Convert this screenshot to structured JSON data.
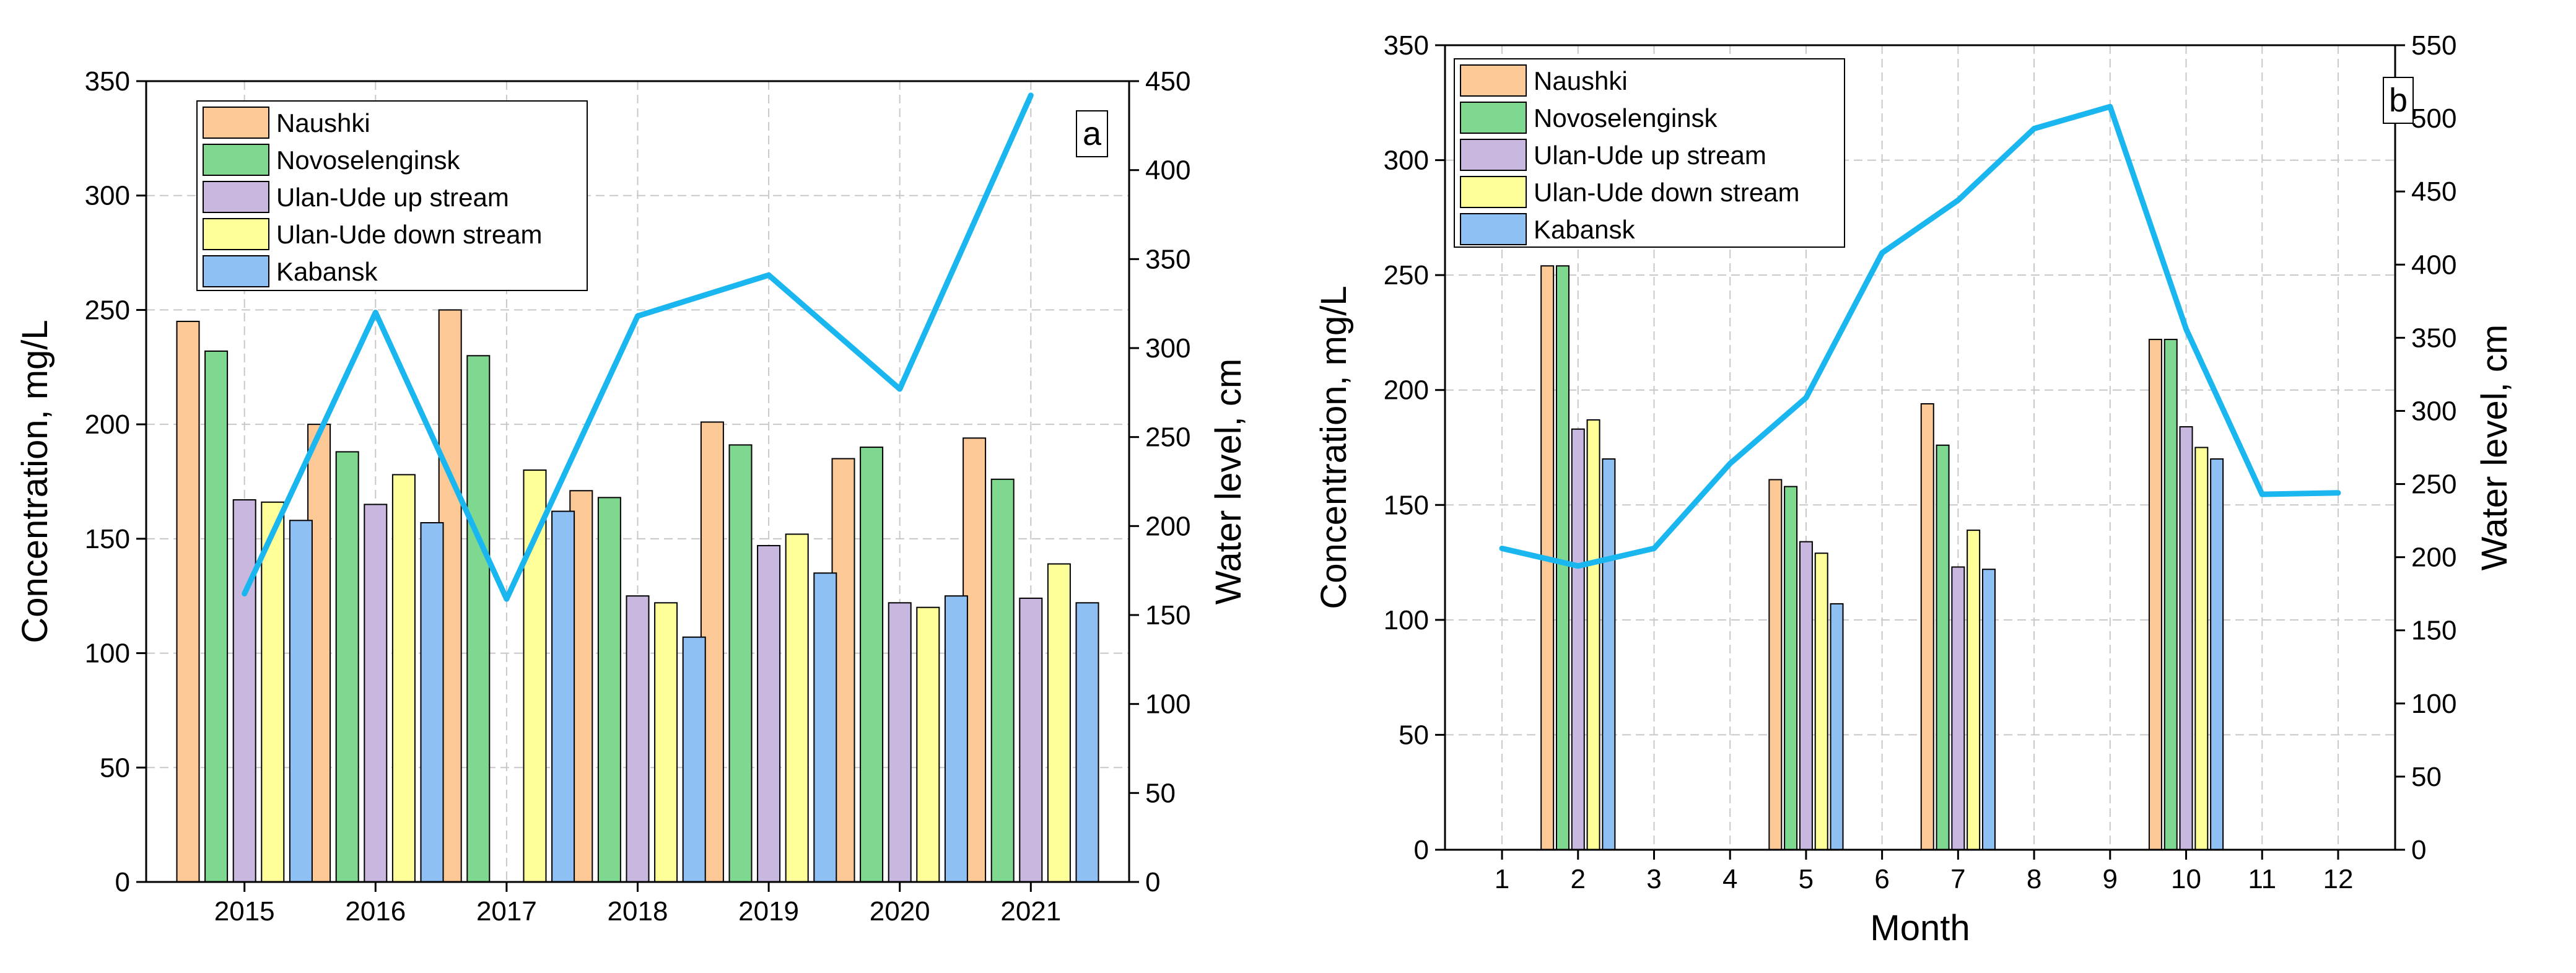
{
  "colors": {
    "Naushki": "#fcc896",
    "Novoselenginsk": "#7fd890",
    "Ulan-Ude up stream": "#c8b8e0",
    "Ulan-Ude down stream": "#ffff99",
    "Kabansk": "#8fc0f4",
    "water_level": "#1ab6ef"
  },
  "chart_data": [
    {
      "type": "bar",
      "panel_label": "a",
      "title": "",
      "xlabel": "",
      "ylabel": "Concentration, mg/L",
      "y2label": "Water level, cm",
      "categories": [
        "2015",
        "2016",
        "2017",
        "2018",
        "2019",
        "2020",
        "2021"
      ],
      "ylim": [
        0,
        350
      ],
      "yticks": [
        0,
        50,
        100,
        150,
        200,
        250,
        300,
        350
      ],
      "y2lim": [
        0,
        450
      ],
      "y2ticks": [
        0,
        50,
        100,
        150,
        200,
        250,
        300,
        350,
        400,
        450
      ],
      "grid": true,
      "legend_position": "top-left",
      "series": [
        {
          "name": "Naushki",
          "values": [
            245,
            200,
            250,
            171,
            201,
            185,
            194
          ]
        },
        {
          "name": "Novoselenginsk",
          "values": [
            232,
            188,
            230,
            168,
            191,
            190,
            176
          ]
        },
        {
          "name": "Ulan-Ude up stream",
          "values": [
            167,
            165,
            null,
            125,
            147,
            122,
            124
          ]
        },
        {
          "name": "Ulan-Ude down stream",
          "values": [
            166,
            178,
            180,
            122,
            152,
            120,
            139
          ]
        },
        {
          "name": "Kabansk",
          "values": [
            158,
            157,
            162,
            107,
            135,
            125,
            122
          ]
        }
      ],
      "line": {
        "name": "Water level",
        "axis": "right",
        "values": [
          162,
          320,
          159,
          318,
          341,
          277,
          442
        ]
      }
    },
    {
      "type": "bar",
      "panel_label": "b",
      "title": "",
      "xlabel": "Month",
      "ylabel": "Concentration, mg/L",
      "y2label": "Water level, cm",
      "categories": [
        "1",
        "2",
        "3",
        "4",
        "5",
        "6",
        "7",
        "8",
        "9",
        "10",
        "11",
        "12"
      ],
      "ylim": [
        0,
        350
      ],
      "yticks": [
        0,
        50,
        100,
        150,
        200,
        250,
        300,
        350
      ],
      "y2lim": [
        0,
        550
      ],
      "y2ticks": [
        0,
        50,
        100,
        150,
        200,
        250,
        300,
        350,
        400,
        450,
        500,
        550
      ],
      "grid": true,
      "legend_position": "top-left",
      "series": [
        {
          "name": "Naushki",
          "values": [
            null,
            254,
            null,
            null,
            161,
            null,
            194,
            null,
            null,
            222,
            null,
            null
          ]
        },
        {
          "name": "Novoselenginsk",
          "values": [
            null,
            254,
            null,
            null,
            158,
            null,
            176,
            null,
            null,
            222,
            null,
            null
          ]
        },
        {
          "name": "Ulan-Ude up stream",
          "values": [
            null,
            183,
            null,
            null,
            134,
            null,
            123,
            null,
            null,
            184,
            null,
            null
          ]
        },
        {
          "name": "Ulan-Ude down stream",
          "values": [
            null,
            187,
            null,
            null,
            129,
            null,
            139,
            null,
            null,
            175,
            null,
            null
          ]
        },
        {
          "name": "Kabansk",
          "values": [
            null,
            170,
            null,
            null,
            107,
            null,
            122,
            null,
            null,
            170,
            null,
            null
          ]
        }
      ],
      "line": {
        "name": "Water level",
        "axis": "right",
        "values": [
          206,
          194,
          206,
          264,
          309,
          408,
          444,
          493,
          508,
          356,
          243,
          244
        ]
      }
    }
  ]
}
